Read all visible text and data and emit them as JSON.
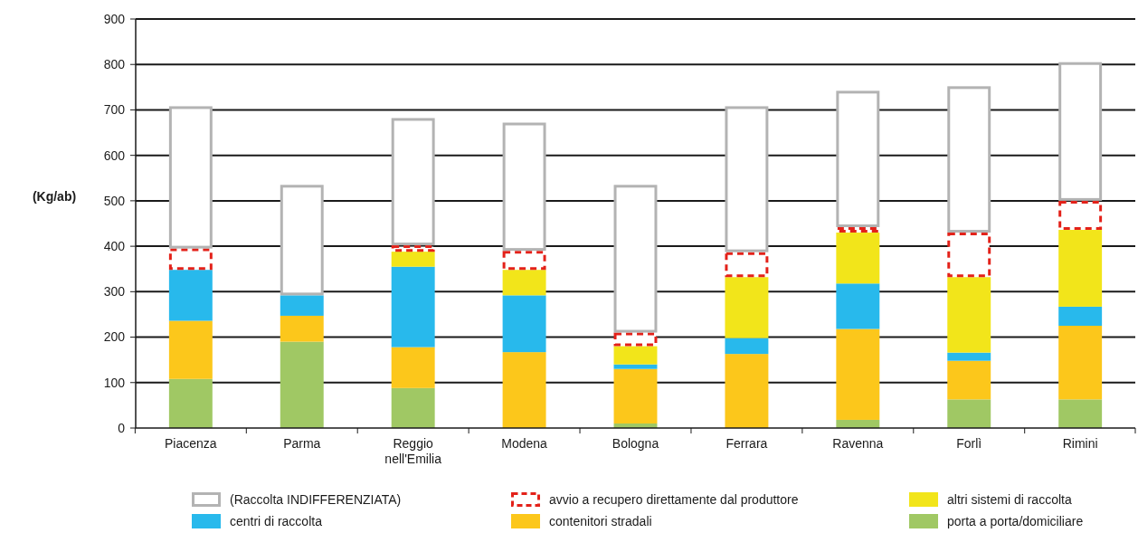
{
  "chart_data": {
    "type": "bar",
    "stacked": true,
    "ylabel": "(Kg/ab)",
    "categories": [
      "Piacenza",
      "Parma",
      "Reggio nell'Emilia",
      "Modena",
      "Bologna",
      "Ferrara",
      "Ravenna",
      "Forlì",
      "Rimini"
    ],
    "series": [
      {
        "name": "porta a porta/domiciliare",
        "color": "#a0c864",
        "values": [
          108,
          190,
          88,
          0,
          10,
          0,
          18,
          63,
          63
        ]
      },
      {
        "name": "contenitori stradali",
        "color": "#fcc71b",
        "values": [
          128,
          57,
          90,
          167,
          120,
          163,
          200,
          85,
          162
        ]
      },
      {
        "name": "centri di raccolta",
        "color": "#28b9ec",
        "values": [
          112,
          45,
          177,
          125,
          10,
          35,
          100,
          18,
          42
        ]
      },
      {
        "name": "altri sistemi di raccolta",
        "color": "#f2e51a",
        "values": [
          0,
          0,
          33,
          56,
          40,
          134,
          112,
          166,
          169
        ]
      },
      {
        "name": "avvio a recupero direttamente dal produttore",
        "color": "#e32119",
        "line_style": "dashed",
        "values": [
          47,
          0,
          14,
          42,
          30,
          55,
          12,
          98,
          64
        ]
      },
      {
        "name": "(Raccolta INDIFFERENZIATA)",
        "color": "#b3b3b3",
        "line_style": "solid",
        "values": [
          313,
          243,
          280,
          282,
          325,
          321,
          300,
          322,
          305
        ]
      }
    ],
    "ylim": [
      0,
      900
    ],
    "yticks": [
      0,
      100,
      200,
      300,
      400,
      500,
      600,
      700,
      800,
      900
    ],
    "grid": "y",
    "legend": "bottom"
  }
}
